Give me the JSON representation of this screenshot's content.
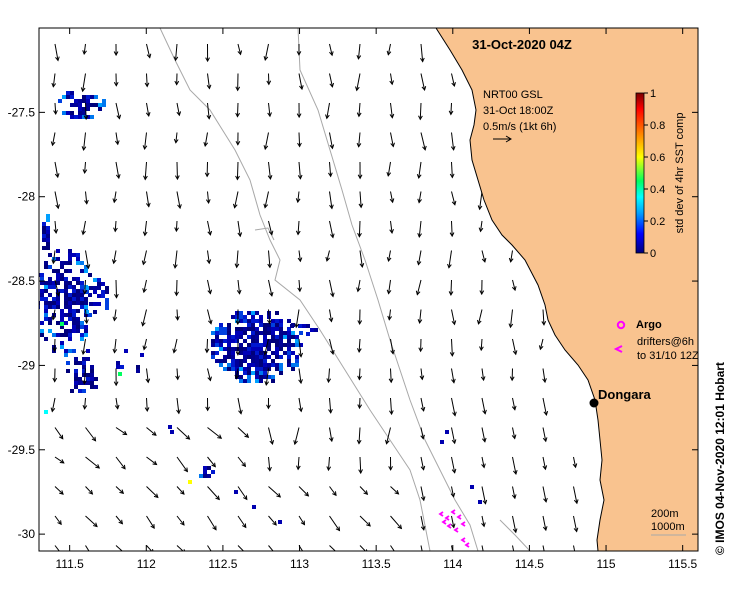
{
  "title": "31-Oct-2020 04Z",
  "product": {
    "line1": "NRT00 GSL",
    "line2": "31-Oct 18:00Z",
    "line3": "0.5m/s (1kt 6h)"
  },
  "colorbar": {
    "label": "std dev of 4hr SST comp",
    "ticks": [
      "0",
      "0.2",
      "0.4",
      "0.6",
      "0.8",
      "1"
    ],
    "range": [
      0,
      1
    ],
    "colors": [
      "#00007a",
      "#0000ff",
      "#00a0ff",
      "#00ffff",
      "#00ff60",
      "#ffff00",
      "#ff8000",
      "#ff0000",
      "#7a0000"
    ]
  },
  "axes": {
    "xticks": [
      "111.5",
      "112",
      "112.5",
      "113",
      "113.5",
      "114",
      "114.5",
      "115",
      "115.5"
    ],
    "yticks": [
      "-27.5",
      "-28",
      "-28.5",
      "-29",
      "-29.5",
      "-30"
    ],
    "xlim": [
      111.3,
      115.6
    ],
    "ylim": [
      -30.1,
      -27.0
    ]
  },
  "legend": {
    "argo_label": "Argo",
    "drifters_line1": "drifters@6h",
    "drifters_line2": "to 31/10 12Z",
    "argo_color": "#ff00ff"
  },
  "town": {
    "name": "Dongara",
    "lon": 114.92,
    "lat": -29.26
  },
  "isobaths": {
    "label1": "200m",
    "label2": "1000m"
  },
  "credit": "© IMOS 04-Nov-2020 12:01 Hobart",
  "land_color": "#f9c38f"
}
